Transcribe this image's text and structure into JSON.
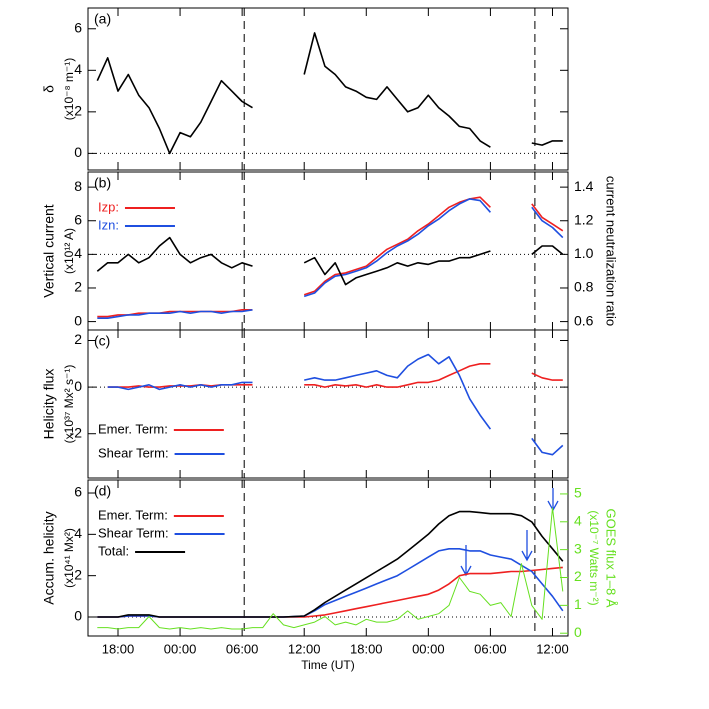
{
  "chart_data": [
    {
      "type": "line",
      "label": "(a)",
      "ylabel": "δ",
      "yunit": "(x10⁻⁸ m⁻¹)",
      "x": [
        16,
        17,
        18,
        19,
        20,
        21,
        22,
        23,
        24,
        25,
        26,
        27,
        28,
        29,
        30,
        31,
        32,
        33,
        34,
        35,
        36,
        37,
        38,
        39,
        40,
        41,
        42,
        43,
        44,
        45,
        46,
        47,
        48,
        49,
        50,
        51,
        52,
        53,
        54,
        55,
        56,
        57,
        58,
        59,
        60,
        61
      ],
      "xlim": [
        15.1,
        61.5
      ],
      "ylim": [
        -0.8,
        7
      ],
      "yticks": [
        0,
        2,
        4,
        6
      ],
      "hline": 0,
      "vlines": [
        30.2,
        58.3
      ],
      "series": [
        {
          "name": null,
          "color": "#000000",
          "values": [
            3.5,
            4.6,
            3.0,
            3.8,
            2.8,
            2.2,
            1.2,
            0.0,
            1.0,
            0.8,
            1.5,
            2.5,
            3.5,
            3.0,
            2.5,
            2.2,
            null,
            null,
            null,
            null,
            3.8,
            5.8,
            4.2,
            3.8,
            3.2,
            3.0,
            2.7,
            2.6,
            3.2,
            2.6,
            2.0,
            2.2,
            2.8,
            2.2,
            1.8,
            1.3,
            1.2,
            0.6,
            0.3,
            null,
            null,
            null,
            0.5,
            0.4,
            0.6,
            0.6
          ]
        }
      ]
    },
    {
      "type": "line",
      "label": "(b)",
      "ylabel": "Vertical current",
      "yunit": "(x10¹² A)",
      "y2label": "current neutralization ratio",
      "x": [
        16,
        17,
        18,
        19,
        20,
        21,
        22,
        23,
        24,
        25,
        26,
        27,
        28,
        29,
        30,
        31,
        32,
        33,
        34,
        35,
        36,
        37,
        38,
        39,
        40,
        41,
        42,
        43,
        44,
        45,
        46,
        47,
        48,
        49,
        50,
        51,
        52,
        53,
        54,
        55,
        56,
        57,
        58,
        59,
        60,
        61
      ],
      "xlim": [
        15.1,
        61.5
      ],
      "ylim": [
        -0.5,
        8.9
      ],
      "yticks": [
        0,
        2,
        4,
        6,
        8
      ],
      "y2lim": [
        0.55,
        1.49
      ],
      "y2ticks": [
        0.6,
        0.8,
        {
          "value": 1.0,
          "label": "1.0"
        },
        1.2,
        1.4
      ],
      "y2hline": 1.0,
      "vlines": [
        30.2,
        58.3
      ],
      "legend": "upper left",
      "series": [
        {
          "name": "Izp:",
          "color": "#ee2020",
          "values": [
            0.3,
            0.3,
            0.4,
            0.4,
            0.5,
            0.5,
            0.5,
            0.6,
            0.6,
            0.6,
            0.6,
            0.6,
            0.6,
            0.6,
            0.7,
            0.7,
            null,
            null,
            null,
            null,
            1.6,
            1.8,
            2.4,
            2.8,
            2.9,
            3.1,
            3.3,
            3.8,
            4.3,
            4.6,
            4.9,
            5.4,
            5.8,
            6.3,
            6.8,
            7.1,
            7.3,
            7.4,
            6.8,
            null,
            null,
            null,
            7.0,
            6.2,
            5.8,
            5.4
          ]
        },
        {
          "name": "Izn:",
          "color": "#1f4fe0",
          "values": [
            0.2,
            0.2,
            0.3,
            0.4,
            0.4,
            0.5,
            0.5,
            0.5,
            0.6,
            0.5,
            0.6,
            0.6,
            0.5,
            0.6,
            0.6,
            0.7,
            null,
            null,
            null,
            null,
            1.5,
            1.7,
            2.3,
            2.7,
            2.8,
            3.0,
            3.2,
            3.6,
            4.1,
            4.5,
            4.8,
            5.2,
            5.7,
            6.1,
            6.6,
            7.0,
            7.3,
            7.2,
            6.5,
            null,
            null,
            null,
            6.8,
            6.0,
            5.6,
            5.0
          ]
        },
        {
          "name": null,
          "color": "#000000",
          "axis": "y2",
          "values": [
            0.9,
            0.95,
            0.95,
            1.0,
            0.95,
            0.98,
            1.05,
            1.1,
            1.0,
            0.95,
            0.98,
            1.0,
            0.95,
            0.92,
            0.95,
            0.93,
            null,
            null,
            null,
            null,
            0.95,
            0.98,
            0.88,
            0.95,
            0.82,
            0.86,
            0.88,
            0.9,
            0.92,
            0.95,
            0.93,
            0.95,
            0.94,
            0.96,
            0.96,
            0.98,
            0.98,
            1.0,
            1.02,
            null,
            null,
            null,
            1.0,
            1.05,
            1.05,
            1.0
          ]
        }
      ]
    },
    {
      "type": "line",
      "label": "(c)",
      "ylabel": "Helicity flux",
      "yunit": "(x10³⁷ Mx² s⁻¹)",
      "x": [
        16,
        17,
        18,
        19,
        20,
        21,
        22,
        23,
        24,
        25,
        26,
        27,
        28,
        29,
        30,
        31,
        32,
        33,
        34,
        35,
        36,
        37,
        38,
        39,
        40,
        41,
        42,
        43,
        44,
        45,
        46,
        47,
        48,
        49,
        50,
        51,
        52,
        53,
        54,
        55,
        56,
        57,
        58,
        59,
        60,
        61
      ],
      "xlim": [
        15.1,
        61.5
      ],
      "ylim": [
        -3.9,
        2.45
      ],
      "yticks": [
        -2,
        0,
        2
      ],
      "hline": 0,
      "vlines": [
        30.2,
        58.3
      ],
      "legend": "lower left",
      "series": [
        {
          "name": "Emer. Term:",
          "color": "#ee2020",
          "values": [
            null,
            0.0,
            0.0,
            0.0,
            0.05,
            0.0,
            0.0,
            0.05,
            0.05,
            0.05,
            0.1,
            0.05,
            0.1,
            0.1,
            0.1,
            0.1,
            null,
            null,
            null,
            null,
            0.1,
            0.1,
            0.0,
            0.1,
            0.05,
            0.1,
            0.0,
            0.1,
            0.0,
            0.0,
            0.1,
            0.2,
            0.2,
            0.3,
            0.5,
            0.7,
            0.9,
            1.0,
            1.0,
            null,
            null,
            null,
            0.6,
            0.4,
            0.3,
            0.3
          ]
        },
        {
          "name": "Shear Term:",
          "color": "#1f4fe0",
          "values": [
            null,
            0.0,
            0.0,
            -0.1,
            0.0,
            0.1,
            -0.1,
            0.0,
            0.1,
            0.0,
            0.1,
            0.0,
            0.1,
            0.1,
            0.2,
            0.2,
            null,
            null,
            null,
            null,
            0.3,
            0.4,
            0.3,
            0.3,
            0.4,
            0.5,
            0.6,
            0.7,
            0.5,
            0.4,
            0.9,
            1.2,
            1.4,
            1.0,
            1.3,
            0.5,
            -0.5,
            -1.2,
            -1.8,
            null,
            null,
            null,
            -2.2,
            -2.8,
            -2.9,
            -2.5
          ]
        }
      ]
    },
    {
      "type": "line",
      "label": "(d)",
      "ylabel": "Accum. helicity",
      "yunit": "(x10⁴¹ Mx²)",
      "y2label": "GOES flux 1–8 Å",
      "y2unit": "(x10⁻⁷ Watts m⁻²)",
      "y2color": "#66e020",
      "xlabel": "Time (UT)",
      "x": [
        16,
        17,
        18,
        19,
        20,
        21,
        22,
        23,
        24,
        25,
        26,
        27,
        28,
        29,
        30,
        31,
        32,
        33,
        34,
        35,
        36,
        37,
        38,
        39,
        40,
        41,
        42,
        43,
        44,
        45,
        46,
        47,
        48,
        49,
        50,
        51,
        52,
        53,
        54,
        55,
        56,
        57,
        58,
        59,
        60,
        61
      ],
      "xlim": [
        15.1,
        61.5
      ],
      "xticks": [
        {
          "value": 18,
          "label": "18:00"
        },
        {
          "value": 24,
          "label": "00:00"
        },
        {
          "value": 30,
          "label": "06:00"
        },
        {
          "value": 36,
          "label": "12:00"
        },
        {
          "value": 42,
          "label": "18:00"
        },
        {
          "value": 48,
          "label": "00:00"
        },
        {
          "value": 54,
          "label": "06:00"
        },
        {
          "value": 60,
          "label": "12:00"
        }
      ],
      "ylim": [
        -0.92,
        6.63
      ],
      "yticks": [
        0,
        2,
        4,
        6
      ],
      "y2lim": [
        -0.1,
        5.5
      ],
      "y2ticks": [
        0,
        1,
        2,
        3,
        4,
        5
      ],
      "hline": 0,
      "vlines": [
        30.2,
        58.3
      ],
      "legend": "upper left",
      "series": [
        {
          "name": "Emer. Term:",
          "color": "#ee2020",
          "values": [
            0,
            0,
            0,
            0.05,
            0.05,
            0.05,
            0,
            0,
            0,
            0,
            0,
            0,
            0,
            0,
            0,
            0,
            0,
            0,
            0,
            0,
            0.0,
            0.05,
            0.1,
            0.2,
            0.3,
            0.4,
            0.5,
            0.6,
            0.7,
            0.8,
            0.9,
            1.0,
            1.1,
            1.3,
            1.6,
            2.0,
            2.1,
            2.1,
            2.1,
            2.15,
            2.2,
            2.2,
            2.25,
            2.3,
            2.35,
            2.4
          ]
        },
        {
          "name": "Shear Term:",
          "color": "#1f4fe0",
          "values": [
            0,
            0,
            0,
            0.05,
            0.05,
            0.05,
            0,
            0,
            0,
            0,
            0,
            0,
            0,
            0,
            0,
            0,
            0,
            0,
            0,
            0.02,
            0.05,
            0.3,
            0.6,
            0.8,
            1.0,
            1.2,
            1.4,
            1.6,
            1.8,
            2.0,
            2.3,
            2.6,
            2.9,
            3.2,
            3.3,
            3.3,
            3.2,
            3.2,
            3.0,
            2.9,
            2.8,
            2.5,
            2.2,
            1.6,
            1.0,
            0.3
          ]
        },
        {
          "name": "Total:",
          "color": "#000000",
          "values": [
            0,
            0,
            0,
            0.1,
            0.1,
            0.1,
            0,
            0,
            0,
            0,
            0,
            0,
            0,
            0,
            0,
            0,
            0,
            0,
            0,
            0.02,
            0.05,
            0.35,
            0.7,
            1.0,
            1.3,
            1.6,
            1.9,
            2.2,
            2.5,
            2.8,
            3.2,
            3.6,
            4.0,
            4.5,
            4.9,
            5.1,
            5.1,
            5.05,
            5.0,
            5.0,
            5.0,
            4.9,
            4.6,
            3.9,
            3.3,
            2.7
          ]
        },
        {
          "name": null,
          "color": "#66e020",
          "axis": "y2",
          "values": [
            0.2,
            0.2,
            0.15,
            0.2,
            0.2,
            0.6,
            0.2,
            0.15,
            0.2,
            0.15,
            0.2,
            0.15,
            0.2,
            0.15,
            0.15,
            0.2,
            0.2,
            0.7,
            0.3,
            0.2,
            0.3,
            0.4,
            0.6,
            0.3,
            0.4,
            0.3,
            0.5,
            0.4,
            0.4,
            0.5,
            0.8,
            0.5,
            0.6,
            0.7,
            1.0,
            2.0,
            1.5,
            1.4,
            1.0,
            1.1,
            0.6,
            2.5,
            1.0,
            0.5,
            4.5,
            1.5
          ]
        }
      ]
    }
  ]
}
